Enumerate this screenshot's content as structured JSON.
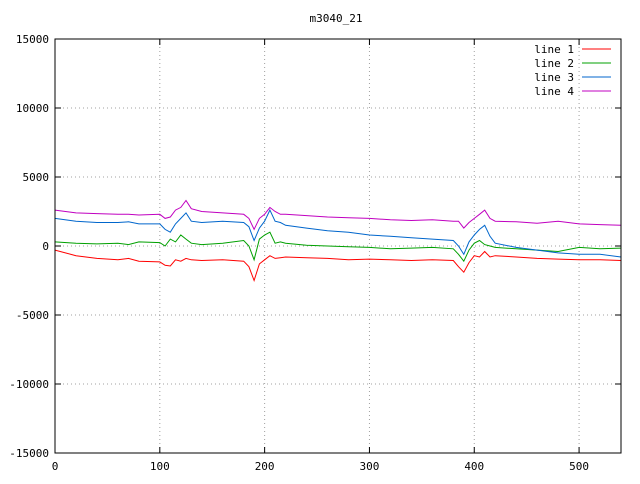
{
  "chart_data": {
    "type": "line",
    "title": "m3040_21",
    "xlabel": "",
    "ylabel": "",
    "xlim": [
      0,
      540
    ],
    "ylim": [
      -15000,
      15000
    ],
    "xticks": [
      0,
      100,
      200,
      300,
      400,
      500
    ],
    "yticks": [
      -15000,
      -10000,
      -5000,
      0,
      5000,
      10000,
      15000
    ],
    "grid": true,
    "legend_position": "top-right",
    "x": [
      0,
      20,
      40,
      60,
      70,
      80,
      100,
      105,
      110,
      115,
      120,
      125,
      130,
      140,
      160,
      180,
      185,
      190,
      195,
      200,
      205,
      210,
      215,
      220,
      240,
      260,
      280,
      300,
      320,
      340,
      360,
      380,
      385,
      390,
      395,
      400,
      405,
      410,
      415,
      420,
      440,
      460,
      480,
      500,
      520,
      540
    ],
    "series": [
      {
        "name": "line 1",
        "color": "#ff0000",
        "values": [
          -300,
          -700,
          -900,
          -1000,
          -900,
          -1100,
          -1150,
          -1400,
          -1450,
          -1000,
          -1100,
          -900,
          -1000,
          -1050,
          -1000,
          -1100,
          -1500,
          -2500,
          -1300,
          -1000,
          -700,
          -900,
          -850,
          -800,
          -850,
          -900,
          -1000,
          -950,
          -1000,
          -1050,
          -1000,
          -1050,
          -1500,
          -1900,
          -1200,
          -700,
          -800,
          -400,
          -800,
          -700,
          -800,
          -900,
          -950,
          -1000,
          -1000,
          -1050
        ]
      },
      {
        "name": "line 2",
        "color": "#00a000",
        "values": [
          300,
          200,
          150,
          200,
          100,
          300,
          250,
          0,
          500,
          300,
          800,
          500,
          200,
          100,
          200,
          400,
          0,
          -1000,
          500,
          800,
          1000,
          200,
          300,
          200,
          50,
          0,
          -50,
          -100,
          -200,
          -150,
          -100,
          -200,
          -600,
          -1100,
          -300,
          200,
          400,
          100,
          0,
          -100,
          -200,
          -300,
          -400,
          -100,
          -200,
          -150
        ]
      },
      {
        "name": "line 3",
        "color": "#0066cc",
        "values": [
          2000,
          1800,
          1700,
          1700,
          1750,
          1600,
          1600,
          1200,
          1000,
          1600,
          2000,
          2400,
          1800,
          1700,
          1800,
          1700,
          1400,
          400,
          1300,
          1800,
          2600,
          1800,
          1700,
          1500,
          1300,
          1100,
          1000,
          800,
          700,
          600,
          500,
          400,
          0,
          -600,
          300,
          800,
          1200,
          1500,
          700,
          200,
          -100,
          -300,
          -500,
          -600,
          -600,
          -800
        ]
      },
      {
        "name": "line 4",
        "color": "#c000c0",
        "values": [
          2600,
          2400,
          2350,
          2300,
          2300,
          2250,
          2300,
          2000,
          2100,
          2600,
          2800,
          3300,
          2700,
          2500,
          2400,
          2300,
          2000,
          1200,
          2000,
          2300,
          2800,
          2500,
          2300,
          2300,
          2200,
          2100,
          2050,
          2000,
          1900,
          1850,
          1900,
          1800,
          1800,
          1300,
          1700,
          2000,
          2300,
          2600,
          2000,
          1800,
          1750,
          1650,
          1800,
          1600,
          1550,
          1500
        ]
      }
    ]
  }
}
